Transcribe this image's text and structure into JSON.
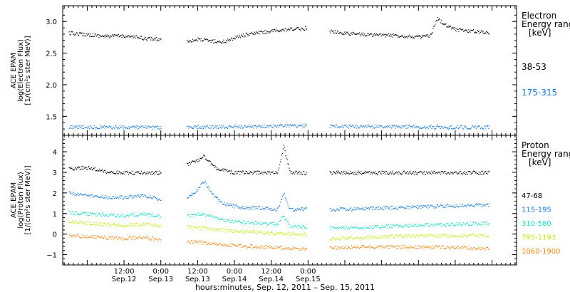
{
  "chart_data": [
    {
      "type": "scatter",
      "panel": "electron",
      "ylabel_lines": [
        "ACE EPAM",
        "log(Electron Flux)",
        "[1/(cm²s ster MeV)]"
      ],
      "ylim": [
        1.2,
        3.25
      ],
      "yticks": [
        1.5,
        2.0,
        2.5,
        3.0
      ],
      "ytick_labels": [
        "1.5",
        "2.0",
        "2.5",
        "3.0"
      ],
      "legend_title_lines": [
        "Electron",
        "Energy ranges",
        "[keV]"
      ],
      "series": [
        {
          "name": "38-53",
          "color": "#000000",
          "segments": [
            {
              "x": [
                -6,
                0,
                6,
                12,
                18,
                24
              ],
              "y": [
                2.82,
                2.8,
                2.77,
                2.78,
                2.74,
                2.72
              ]
            },
            {
              "x": [
                32.5,
                36,
                40,
                44,
                48,
                52,
                56,
                62,
                66,
                71.5
              ],
              "y": [
                2.7,
                2.72,
                2.7,
                2.68,
                2.75,
                2.8,
                2.83,
                2.86,
                2.88,
                2.9
              ]
            },
            {
              "x": [
                79,
                84,
                90,
                96,
                102,
                108,
                112,
                114,
                117,
                120,
                126,
                131
              ],
              "y": [
                2.85,
                2.82,
                2.8,
                2.79,
                2.78,
                2.76,
                2.78,
                3.05,
                2.95,
                2.88,
                2.85,
                2.83
              ]
            }
          ]
        },
        {
          "name": "175-315",
          "color": "#1a7bd0",
          "segments": [
            {
              "x": [
                -6,
                24
              ],
              "y": [
                1.34,
                1.33
              ]
            },
            {
              "x": [
                32.5,
                71.5
              ],
              "y": [
                1.33,
                1.36
              ]
            },
            {
              "x": [
                79,
                131
              ],
              "y": [
                1.35,
                1.33
              ]
            }
          ]
        }
      ]
    },
    {
      "type": "scatter",
      "panel": "proton",
      "ylabel_lines": [
        "ACE EPAM",
        "log(Proton Flux)",
        "[1/(cm²s ster MeV)]"
      ],
      "ylim": [
        -1.5,
        4.8
      ],
      "yticks": [
        -1,
        0,
        1,
        2,
        3,
        4
      ],
      "ytick_labels": [
        "−1",
        "0",
        "1",
        "2",
        "3",
        "4"
      ],
      "legend_title_lines": [
        "Proton",
        "Energy ranges",
        "[keV]"
      ],
      "series": [
        {
          "name": "47-68",
          "color": "#000000",
          "segments": [
            {
              "x": [
                -6,
                0,
                6,
                12,
                18,
                24
              ],
              "y": [
                3.2,
                3.25,
                3.05,
                3.0,
                3.0,
                3.0
              ]
            },
            {
              "x": [
                32.5,
                36,
                38,
                42,
                48,
                56,
                62,
                64,
                66,
                71.5
              ],
              "y": [
                3.4,
                3.6,
                3.8,
                3.2,
                3.0,
                3.0,
                3.0,
                4.3,
                3.0,
                3.0
              ]
            },
            {
              "x": [
                79,
                131
              ],
              "y": [
                3.0,
                3.0
              ]
            }
          ]
        },
        {
          "name": "115-195",
          "color": "#1a7bd0",
          "segments": [
            {
              "x": [
                -6,
                0,
                6,
                12,
                18,
                24
              ],
              "y": [
                2.0,
                1.9,
                1.8,
                1.8,
                1.9,
                1.7
              ]
            },
            {
              "x": [
                32.5,
                36,
                38,
                41,
                44,
                50,
                56,
                62,
                64,
                66,
                71.5
              ],
              "y": [
                1.8,
                2.2,
                2.6,
                1.9,
                1.5,
                1.3,
                1.3,
                1.2,
                2.0,
                1.2,
                1.25
              ]
            },
            {
              "x": [
                79,
                90,
                100,
                110,
                120,
                131
              ],
              "y": [
                1.2,
                1.25,
                1.3,
                1.35,
                1.4,
                1.45
              ]
            }
          ]
        },
        {
          "name": "310-580",
          "color": "#1ad6c8",
          "segments": [
            {
              "x": [
                -6,
                0,
                6,
                12,
                18,
                24
              ],
              "y": [
                1.05,
                1.0,
                0.95,
                0.9,
                1.0,
                0.85
              ]
            },
            {
              "x": [
                32.5,
                38,
                44,
                50,
                56,
                62,
                64,
                66,
                71.5
              ],
              "y": [
                0.9,
                1.0,
                0.7,
                0.6,
                0.55,
                0.5,
                0.9,
                0.4,
                0.35
              ]
            },
            {
              "x": [
                79,
                90,
                100,
                110,
                120,
                131
              ],
              "y": [
                0.3,
                0.35,
                0.4,
                0.45,
                0.5,
                0.55
              ]
            }
          ]
        },
        {
          "name": "795-1193",
          "color": "#c6e61a",
          "segments": [
            {
              "x": [
                -6,
                0,
                6,
                12,
                18,
                24
              ],
              "y": [
                0.6,
                0.55,
                0.5,
                0.45,
                0.5,
                0.4
              ]
            },
            {
              "x": [
                32.5,
                38,
                44,
                50,
                56,
                62,
                71.5
              ],
              "y": [
                0.35,
                0.3,
                0.2,
                0.15,
                0.1,
                0.05,
                0.0
              ]
            },
            {
              "x": [
                79,
                90,
                100,
                110,
                120,
                131
              ],
              "y": [
                -0.2,
                -0.15,
                -0.1,
                -0.05,
                -0.05,
                -0.05
              ]
            }
          ]
        },
        {
          "name": "1060-1900",
          "color": "#e8881a",
          "segments": [
            {
              "x": [
                -6,
                0,
                6,
                12,
                18,
                24
              ],
              "y": [
                -0.05,
                -0.1,
                -0.15,
                -0.2,
                -0.15,
                -0.25
              ]
            },
            {
              "x": [
                32.5,
                38,
                44,
                50,
                56,
                62,
                71.5
              ],
              "y": [
                -0.35,
                -0.4,
                -0.5,
                -0.55,
                -0.6,
                -0.65,
                -0.7
              ]
            },
            {
              "x": [
                79,
                90,
                100,
                110,
                120,
                131
              ],
              "y": [
                -0.65,
                -0.6,
                -0.6,
                -0.6,
                -0.65,
                -0.7
              ]
            }
          ]
        }
      ]
    }
  ],
  "x_axis": {
    "label": "hours:minutes, Sep. 12, 2011 – Sep. 15, 2011",
    "xlim": [
      -8,
      140
    ],
    "ticks": [
      {
        "x": 12,
        "time": "12:00",
        "date": "Sep.12"
      },
      {
        "x": 24,
        "time": "0:00",
        "date": "Sep.13"
      },
      {
        "x": 36,
        "time": "12:00",
        "date": "Sep.13"
      },
      {
        "x": 48,
        "time": "0:00",
        "date": "Sep.14"
      },
      {
        "x": 60,
        "time": "12:00",
        "date": "Sep.14"
      },
      {
        "x": 72,
        "time": "0:00",
        "date": "Sep.15"
      }
    ],
    "minor_step": 1.5
  }
}
